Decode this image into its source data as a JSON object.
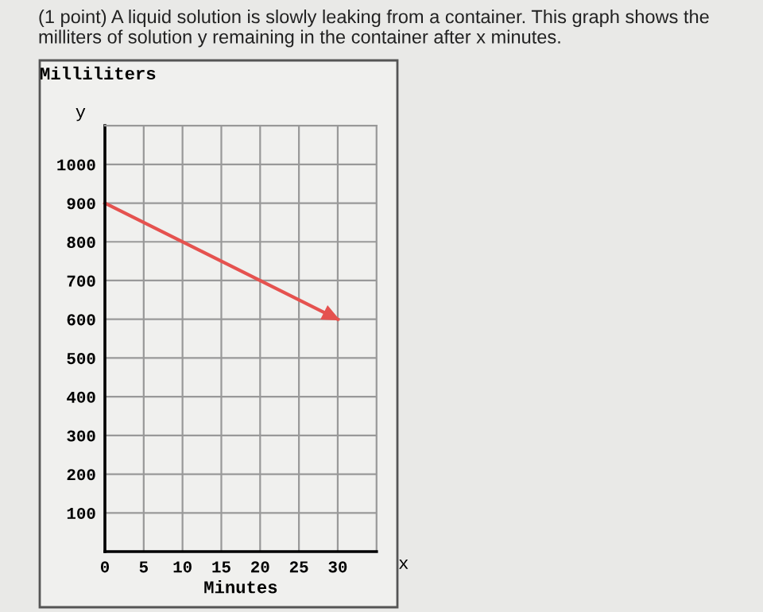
{
  "chart_data": {
    "type": "line",
    "title": "(1 point) A liquid solution is slowly leaking from a container. This graph shows the milliters of solution y remaining in the container after x minutes.",
    "xlabel": "Minutes",
    "ylabel": "Milliliters",
    "annotations": [
      "y",
      "x"
    ],
    "x": [
      0,
      30
    ],
    "series": [
      {
        "color": "#e5524f",
        "values": [
          900,
          600
        ]
      }
    ],
    "xlim": [
      0,
      35
    ],
    "ylim": [
      0,
      1100
    ],
    "xticks": [
      0,
      5,
      10,
      15,
      20,
      25,
      30
    ],
    "yticks": [
      100,
      200,
      300,
      400,
      500,
      600,
      700,
      800,
      900,
      1000
    ],
    "grid": true,
    "marker": "none",
    "line_style": "solid"
  }
}
